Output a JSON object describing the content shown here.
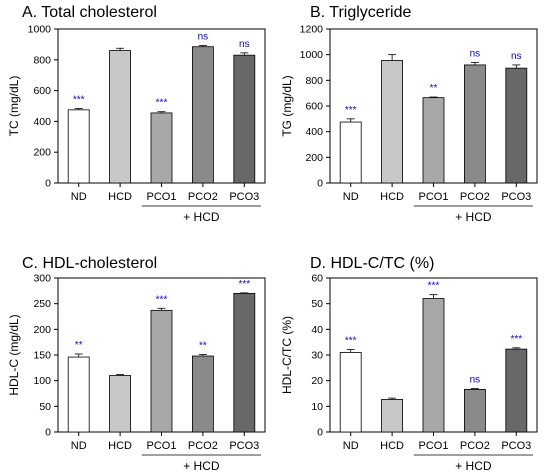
{
  "figure": {
    "group_label": "+ HCD",
    "colors": {
      "bars": [
        "#ffffff",
        "#c8c8c8",
        "#a8a8a8",
        "#8a8a8a",
        "#686868"
      ],
      "significance": "#0000ee",
      "axis": "#000000"
    }
  },
  "chart_data": [
    {
      "type": "bar",
      "title": "A. Total cholesterol",
      "ylabel": "TC (mg/dL)",
      "xlabel": "",
      "categories": [
        "ND",
        "HCD",
        "PCO1",
        "PCO2",
        "PCO3"
      ],
      "values": [
        475,
        860,
        455,
        885,
        830
      ],
      "errors": [
        8,
        15,
        8,
        8,
        15
      ],
      "significance": [
        "***",
        "",
        "***",
        "ns",
        "ns"
      ],
      "ylim": [
        0,
        1000
      ],
      "yticks": [
        0,
        200,
        400,
        600,
        800,
        1000
      ],
      "grid": false
    },
    {
      "type": "bar",
      "title": "B. Triglyceride",
      "ylabel": "TG (mg/dL)",
      "xlabel": "",
      "categories": [
        "ND",
        "HCD",
        "PCO1",
        "PCO2",
        "PCO3"
      ],
      "values": [
        475,
        955,
        665,
        920,
        895
      ],
      "errors": [
        25,
        45,
        5,
        20,
        25
      ],
      "significance": [
        "***",
        "",
        "**",
        "ns",
        "ns"
      ],
      "ylim": [
        0,
        1200
      ],
      "yticks": [
        0,
        200,
        400,
        600,
        800,
        1000,
        1200
      ],
      "grid": false
    },
    {
      "type": "bar",
      "title": "C. HDL-cholesterol",
      "ylabel": "HDL-C (mg/dL)",
      "xlabel": "",
      "categories": [
        "ND",
        "HCD",
        "PCO1",
        "PCO2",
        "PCO3"
      ],
      "values": [
        146,
        110,
        237,
        148,
        270
      ],
      "errors": [
        6,
        2,
        4,
        3,
        1
      ],
      "significance": [
        "**",
        "",
        "***",
        "**",
        "***"
      ],
      "ylim": [
        0,
        300
      ],
      "yticks": [
        0,
        50,
        100,
        150,
        200,
        250,
        300
      ],
      "grid": false
    },
    {
      "type": "bar",
      "title": "D.  HDL-C/TC (%)",
      "ylabel": "HDL-C/TC (%)",
      "xlabel": "",
      "categories": [
        "ND",
        "HCD",
        "PCO1",
        "PCO2",
        "PCO3"
      ],
      "values": [
        31,
        12.7,
        52,
        16.6,
        32.3
      ],
      "errors": [
        1.2,
        0.5,
        1.5,
        0.3,
        0.5
      ],
      "significance": [
        "***",
        "",
        "***",
        "ns",
        "***"
      ],
      "ylim": [
        0,
        60
      ],
      "yticks": [
        0,
        10,
        20,
        30,
        40,
        50,
        60
      ],
      "grid": false
    }
  ]
}
